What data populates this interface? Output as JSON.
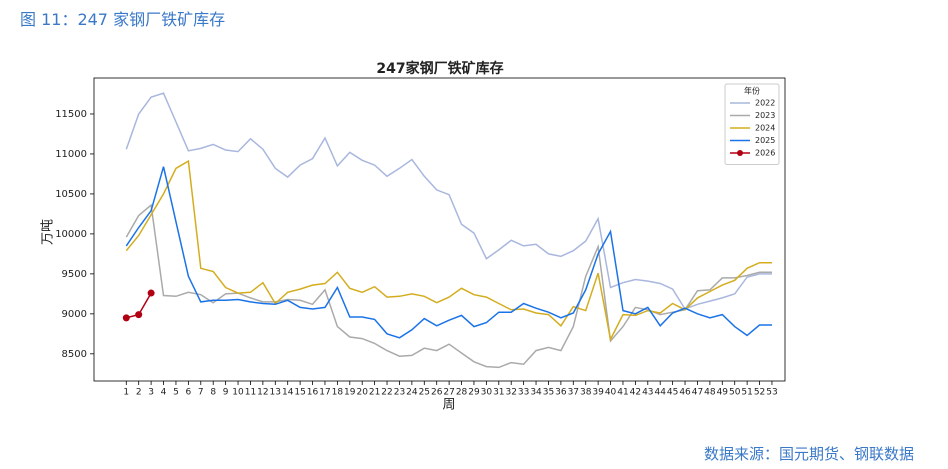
{
  "header": "图 11：247 家钢厂铁矿库存",
  "source": "数据来源：国元期货、钢联数据",
  "chart_data": {
    "type": "line",
    "title": "247家钢厂铁矿库存",
    "x_label": "周",
    "y_label": "万吨",
    "legend_title": "年份",
    "legend_loc": "upper right",
    "x": [
      1,
      2,
      3,
      4,
      5,
      6,
      7,
      8,
      9,
      10,
      11,
      12,
      13,
      14,
      15,
      16,
      17,
      18,
      19,
      20,
      21,
      22,
      23,
      24,
      25,
      26,
      27,
      28,
      29,
      30,
      31,
      32,
      33,
      34,
      35,
      36,
      37,
      38,
      39,
      40,
      41,
      42,
      43,
      44,
      45,
      46,
      47,
      48,
      49,
      50,
      51,
      52,
      53
    ],
    "xlim": [
      -1.6,
      54.05
    ],
    "xticks": [
      1,
      2,
      3,
      4,
      5,
      6,
      7,
      8,
      9,
      10,
      11,
      12,
      13,
      14,
      15,
      16,
      17,
      18,
      19,
      20,
      21,
      22,
      23,
      24,
      25,
      26,
      27,
      28,
      29,
      30,
      31,
      32,
      33,
      34,
      35,
      36,
      37,
      38,
      39,
      40,
      41,
      42,
      43,
      44,
      45,
      46,
      47,
      48,
      49,
      50,
      51,
      52,
      53
    ],
    "ylim": [
      8160,
      11950
    ],
    "yticks": [
      8500,
      9000,
      9500,
      10000,
      10500,
      11000,
      11500
    ],
    "series": [
      {
        "name": "2022",
        "color": "#a9b7de",
        "values": [
          11060,
          11500,
          11710,
          11760,
          11400,
          11040,
          11070,
          11120,
          11050,
          11030,
          11190,
          11060,
          10820,
          10710,
          10860,
          10940,
          11200,
          10850,
          11020,
          10920,
          10860,
          10720,
          10820,
          10930,
          10720,
          10550,
          10490,
          10120,
          10010,
          9690,
          9800,
          9920,
          9850,
          9870,
          9750,
          9720,
          9790,
          9910,
          10190,
          9330,
          9390,
          9430,
          9410,
          9380,
          9310,
          9060,
          9120,
          9160,
          9200,
          9250,
          9460,
          9500,
          9500
        ]
      },
      {
        "name": "2023",
        "color": "#aaaaaa",
        "values": [
          9960,
          10230,
          10360,
          9230,
          9220,
          9270,
          9240,
          9140,
          9250,
          9260,
          9200,
          9150,
          9150,
          9180,
          9170,
          9120,
          9300,
          8840,
          8710,
          8690,
          8630,
          8540,
          8470,
          8480,
          8570,
          8540,
          8620,
          8510,
          8400,
          8340,
          8330,
          8390,
          8370,
          8540,
          8580,
          8540,
          8840,
          9470,
          9840,
          8660,
          8840,
          9080,
          9050,
          8990,
          9020,
          9050,
          9290,
          9300,
          9450,
          9450,
          9480,
          9520,
          9520
        ]
      },
      {
        "name": "2024",
        "color": "#d4ad1f",
        "values": [
          9790,
          9980,
          10240,
          10500,
          10820,
          10910,
          9570,
          9530,
          9330,
          9260,
          9270,
          9390,
          9130,
          9270,
          9310,
          9360,
          9380,
          9520,
          9320,
          9270,
          9340,
          9210,
          9220,
          9250,
          9220,
          9140,
          9210,
          9320,
          9240,
          9210,
          9130,
          9050,
          9060,
          9010,
          8990,
          8850,
          9090,
          9040,
          9510,
          8680,
          8990,
          8980,
          9040,
          9010,
          9130,
          9050,
          9200,
          9280,
          9360,
          9420,
          9570,
          9640,
          9640
        ]
      },
      {
        "name": "2025",
        "color": "#1a73e8",
        "values": [
          9850,
          10080,
          10290,
          10840,
          10150,
          9470,
          9150,
          9170,
          9170,
          9180,
          9150,
          9130,
          9120,
          9170,
          9080,
          9060,
          9080,
          9330,
          8960,
          8960,
          8930,
          8750,
          8700,
          8800,
          8940,
          8850,
          8920,
          8980,
          8840,
          8890,
          9020,
          9020,
          9130,
          9070,
          9020,
          8950,
          9010,
          9300,
          9750,
          10030,
          9040,
          9000,
          9080,
          8850,
          9010,
          9070,
          9000,
          8950,
          8990,
          8840,
          8730,
          8860,
          8860
        ]
      },
      {
        "name": "2026",
        "color": "#b00012",
        "markers": true,
        "values": [
          8950,
          8990,
          9260,
          null,
          null,
          null,
          null,
          null,
          null,
          null,
          null,
          null,
          null,
          null,
          null,
          null,
          null,
          null,
          null,
          null,
          null,
          null,
          null,
          null,
          null,
          null,
          null,
          null,
          null,
          null,
          null,
          null,
          null,
          null,
          null,
          null,
          null,
          null,
          null,
          null,
          null,
          null,
          null,
          null,
          null,
          null,
          null,
          null,
          null,
          null,
          null,
          null,
          null
        ]
      }
    ]
  }
}
